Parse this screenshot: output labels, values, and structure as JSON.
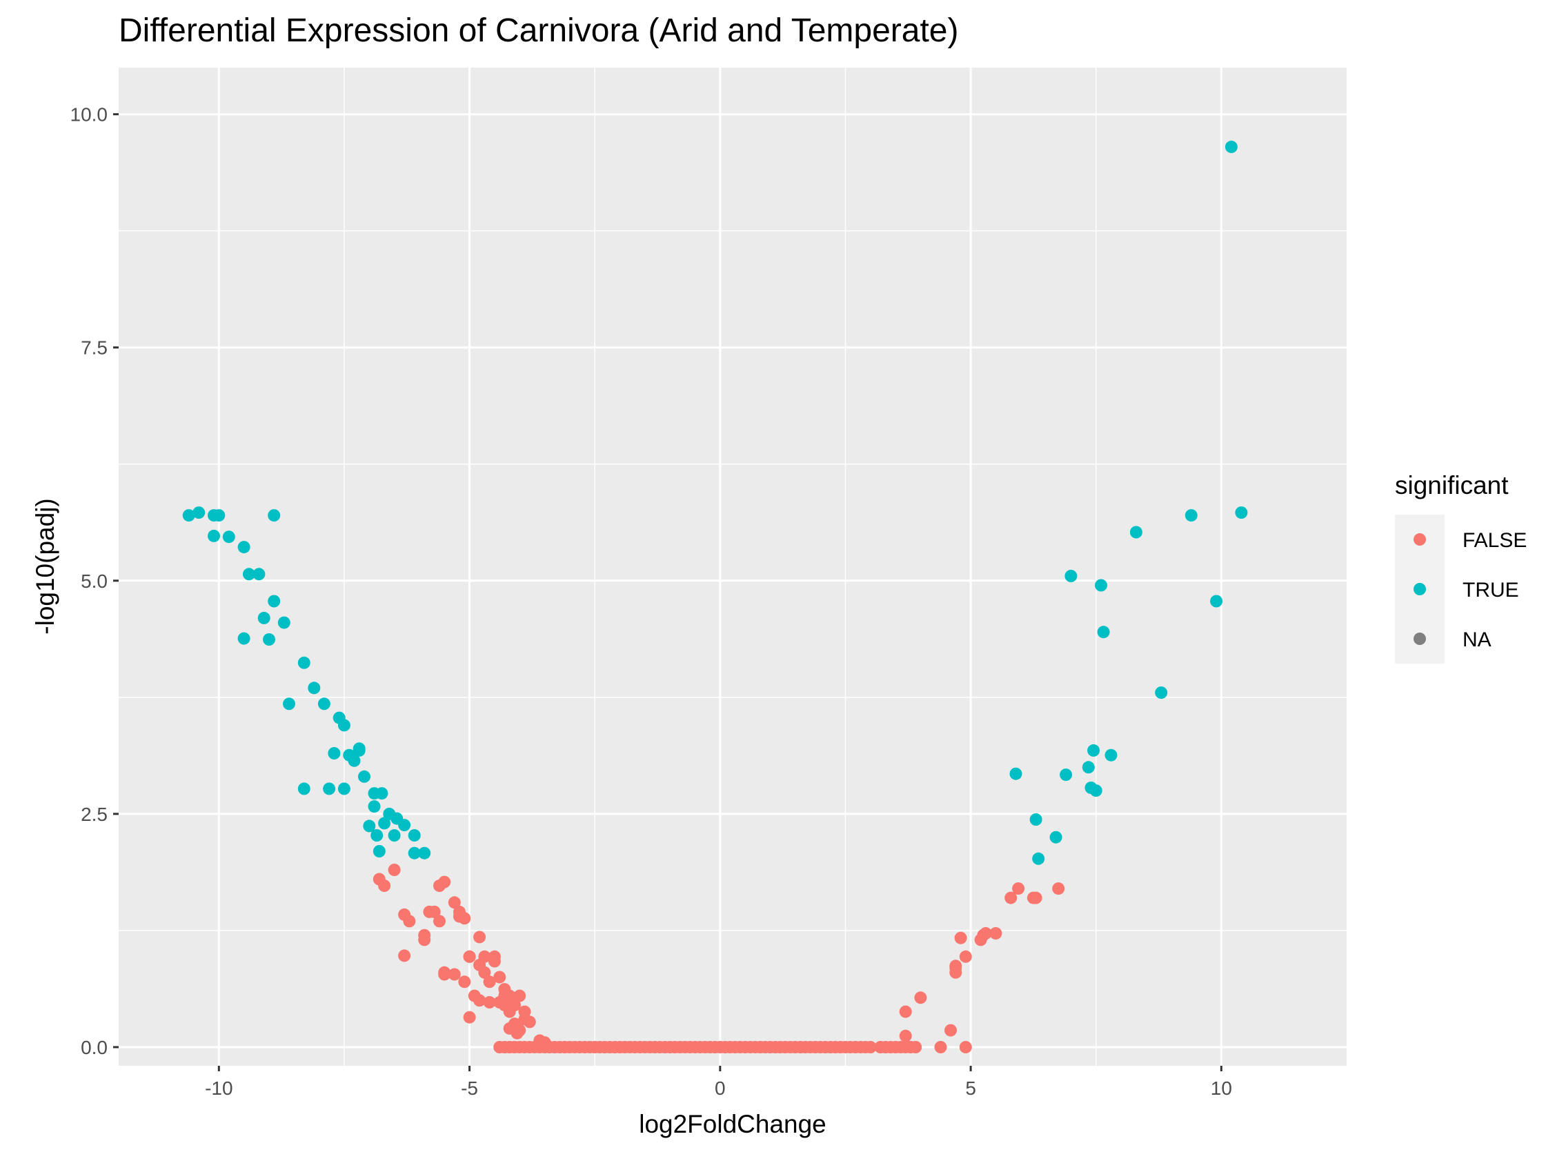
{
  "chart_data": {
    "type": "scatter",
    "title": "Differential Expression of Carnivora (Arid and Temperate)",
    "xlabel": "log2FoldChange",
    "ylabel": "-log10(padj)",
    "xlim": [
      -12,
      12.5
    ],
    "ylim": [
      -0.2,
      10.5
    ],
    "x_ticks": [
      -10,
      -5,
      0,
      5,
      10
    ],
    "x_tick_labels": [
      "-10",
      "-5",
      "0",
      "5",
      "10"
    ],
    "y_ticks": [
      0,
      2.5,
      5,
      7.5,
      10
    ],
    "y_tick_labels": [
      "0.0",
      "2.5",
      "5.0",
      "7.5",
      "10.0"
    ],
    "grid": true,
    "legend": {
      "title": "significant",
      "position": "right",
      "entries": [
        {
          "label": "FALSE",
          "color": "#F8766D"
        },
        {
          "label": "TRUE",
          "color": "#00BFC4"
        },
        {
          "label": "NA",
          "color": "#7F7F7F"
        }
      ]
    },
    "series": [
      {
        "name": "FALSE",
        "color": "#F8766D",
        "x": [
          -6.8,
          -6.7,
          -6.5,
          -6.3,
          -6.2,
          -6.3,
          -5.9,
          -5.9,
          -5.8,
          -5.7,
          -5.6,
          -5.5,
          -5.6,
          -5.5,
          -5.3,
          -5.2,
          -5.2,
          -5.1,
          -5.0,
          -5.1,
          -5.0,
          -4.9,
          -4.8,
          -4.7,
          -4.5,
          -4.5,
          -5.3,
          -5.5,
          -5.0,
          -4.8,
          -4.6,
          -4.4,
          -4.3,
          -4.2,
          -4.1,
          -4.0,
          -4.8,
          -4.7,
          -4.6,
          -4.4,
          -4.3,
          -4.2,
          -4.1,
          -4.0,
          -3.9,
          -3.8,
          -3.6,
          -5.0,
          -4.3,
          -4.2,
          -3.9,
          -3.5,
          -4.2,
          -4.05,
          -4.4,
          -4.3,
          -4.2,
          -4.1,
          -4.0,
          -3.9,
          -3.8,
          -3.7,
          -3.6,
          -3.5,
          -3.4,
          -3.3,
          -3.2,
          -3.1,
          -3.0,
          -2.9,
          -2.8,
          -2.7,
          -2.6,
          -2.5,
          -2.4,
          -2.3,
          -2.2,
          -2.1,
          -2.0,
          -1.9,
          -1.8,
          -1.7,
          -1.6,
          -1.5,
          -1.4,
          -1.3,
          -1.2,
          -1.1,
          -1.0,
          -0.9,
          -0.8,
          -0.7,
          -0.6,
          -0.5,
          -0.4,
          -0.3,
          -0.2,
          -0.1,
          0.0,
          0.1,
          0.2,
          0.3,
          0.4,
          0.5,
          0.6,
          0.7,
          0.8,
          0.9,
          1.0,
          1.1,
          1.2,
          1.3,
          1.4,
          1.5,
          1.6,
          1.7,
          1.8,
          1.9,
          2.0,
          2.1,
          2.2,
          2.3,
          2.4,
          2.5,
          2.6,
          2.7,
          2.8,
          2.9,
          3.0,
          3.2,
          3.3,
          3.4,
          3.5,
          3.6,
          3.7,
          3.8,
          3.9,
          4.4,
          4.9,
          3.7,
          3.7,
          4.0,
          4.6,
          4.7,
          4.7,
          4.7,
          4.8,
          4.9,
          5.2,
          5.25,
          5.3,
          5.5,
          5.8,
          5.95,
          6.25,
          6.3,
          6.75
        ],
        "y": [
          1.8,
          1.73,
          1.9,
          1.42,
          1.35,
          0.98,
          1.2,
          1.15,
          1.45,
          1.45,
          1.73,
          1.77,
          1.35,
          0.78,
          1.55,
          1.45,
          1.4,
          1.38,
          0.97,
          0.7,
          0.97,
          0.55,
          0.5,
          0.97,
          0.97,
          0.92,
          0.78,
          0.8,
          0.32,
          0.88,
          0.7,
          0.75,
          0.62,
          0.55,
          0.45,
          0.55,
          1.18,
          0.8,
          0.48,
          0.48,
          0.45,
          0.38,
          0.25,
          0.18,
          0.38,
          0.27,
          0.07,
          0.97,
          0.55,
          0.5,
          0.3,
          0.05,
          0.2,
          0.15,
          0.0,
          0.0,
          0.0,
          0.0,
          0.0,
          0.0,
          0.0,
          0.0,
          0.0,
          0.0,
          0.0,
          0.0,
          0.0,
          0.0,
          0.0,
          0.0,
          0.0,
          0.0,
          0.0,
          0.0,
          0.0,
          0.0,
          0.0,
          0.0,
          0.0,
          0.0,
          0.0,
          0.0,
          0.0,
          0.0,
          0.0,
          0.0,
          0.0,
          0.0,
          0.0,
          0.0,
          0.0,
          0.0,
          0.0,
          0.0,
          0.0,
          0.0,
          0.0,
          0.0,
          0.0,
          0.0,
          0.0,
          0.0,
          0.0,
          0.0,
          0.0,
          0.0,
          0.0,
          0.0,
          0.0,
          0.0,
          0.0,
          0.0,
          0.0,
          0.0,
          0.0,
          0.0,
          0.0,
          0.0,
          0.0,
          0.0,
          0.0,
          0.0,
          0.0,
          0.0,
          0.0,
          0.0,
          0.0,
          0.0,
          0.0,
          0.0,
          0.0,
          0.0,
          0.0,
          0.0,
          0.0,
          0.0,
          0.0,
          0.0,
          0.0,
          0.38,
          0.12,
          0.53,
          0.18,
          0.8,
          0.85,
          0.87,
          1.17,
          0.97,
          1.15,
          1.2,
          1.22,
          1.22,
          1.6,
          1.7,
          1.6,
          1.6,
          1.7
        ]
      },
      {
        "name": "TRUE",
        "color": "#00BFC4",
        "x": [
          -10.6,
          -10.4,
          -10.1,
          -10.0,
          -10.1,
          -9.8,
          -9.5,
          -9.5,
          -9.4,
          -9.2,
          -9.1,
          -9.0,
          -8.9,
          -8.9,
          -8.7,
          -8.6,
          -8.3,
          -8.3,
          -8.1,
          -7.9,
          -7.8,
          -7.7,
          -7.6,
          -7.5,
          -7.5,
          -7.4,
          -7.3,
          -7.2,
          -7.2,
          -7.1,
          -7.0,
          -6.9,
          -6.9,
          -6.85,
          -6.8,
          -6.75,
          -6.7,
          -6.6,
          -6.5,
          -6.45,
          -6.3,
          -6.1,
          -6.1,
          -5.9,
          5.9,
          6.3,
          6.35,
          6.7,
          6.9,
          7.0,
          7.35,
          7.4,
          7.45,
          7.5,
          7.6,
          7.65,
          7.8,
          8.3,
          8.8,
          9.4,
          9.9,
          10.2,
          10.4
        ],
        "y": [
          5.7,
          5.73,
          5.7,
          5.7,
          5.48,
          5.47,
          5.36,
          4.38,
          5.07,
          5.07,
          4.6,
          4.37,
          5.7,
          4.78,
          4.55,
          3.68,
          4.12,
          2.77,
          3.85,
          3.68,
          2.77,
          3.15,
          3.53,
          3.45,
          2.77,
          3.13,
          3.07,
          3.18,
          3.2,
          2.9,
          2.37,
          2.58,
          2.72,
          2.27,
          2.1,
          2.72,
          2.4,
          2.5,
          2.27,
          2.45,
          2.38,
          2.27,
          2.08,
          2.08,
          2.93,
          2.44,
          2.02,
          2.25,
          2.92,
          5.05,
          3.0,
          2.78,
          3.18,
          2.75,
          4.95,
          4.45,
          3.13,
          5.52,
          3.8,
          5.7,
          4.78,
          9.65,
          5.73
        ]
      }
    ]
  }
}
